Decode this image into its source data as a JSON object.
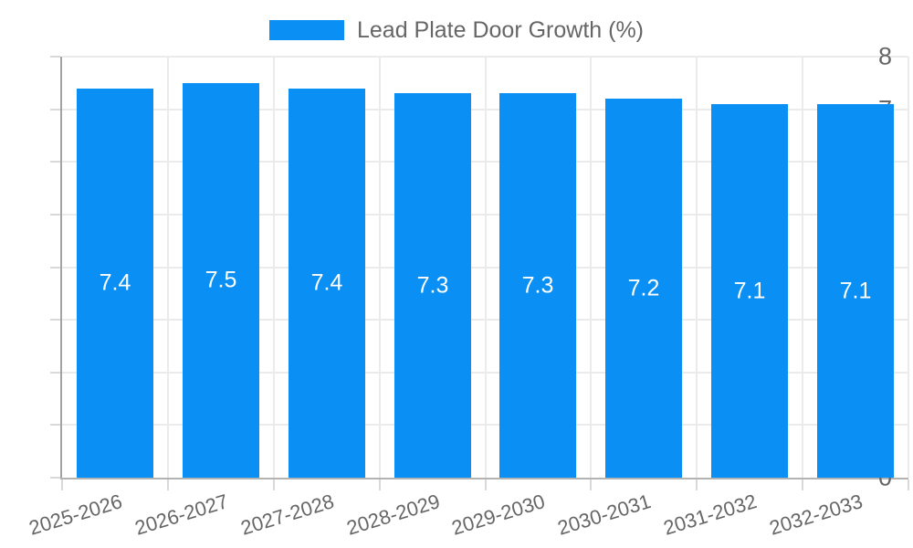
{
  "legend": {
    "label": "Lead Plate Door Growth (%)"
  },
  "chart_data": {
    "type": "bar",
    "title": "Lead Plate Door Growth (%)",
    "categories": [
      "2025-2026",
      "2026-2027",
      "2027-2028",
      "2028-2029",
      "2029-2030",
      "2030-2031",
      "2031-2032",
      "2032-2033"
    ],
    "values": [
      7.4,
      7.5,
      7.4,
      7.3,
      7.3,
      7.2,
      7.1,
      7.1
    ],
    "value_labels": [
      "7.4",
      "7.5",
      "7.4",
      "7.3",
      "7.3",
      "7.2",
      "7.1",
      "7.1"
    ],
    "xlabel": "",
    "ylabel": "",
    "ylim": [
      0,
      8
    ],
    "yticks": [
      0,
      1,
      2,
      3,
      4,
      5,
      6,
      7,
      8
    ],
    "grid": true,
    "legend_position": "top",
    "bar_color": "#0a90f5",
    "value_label_color": "#ffffff",
    "axis_text_color": "#666666"
  }
}
